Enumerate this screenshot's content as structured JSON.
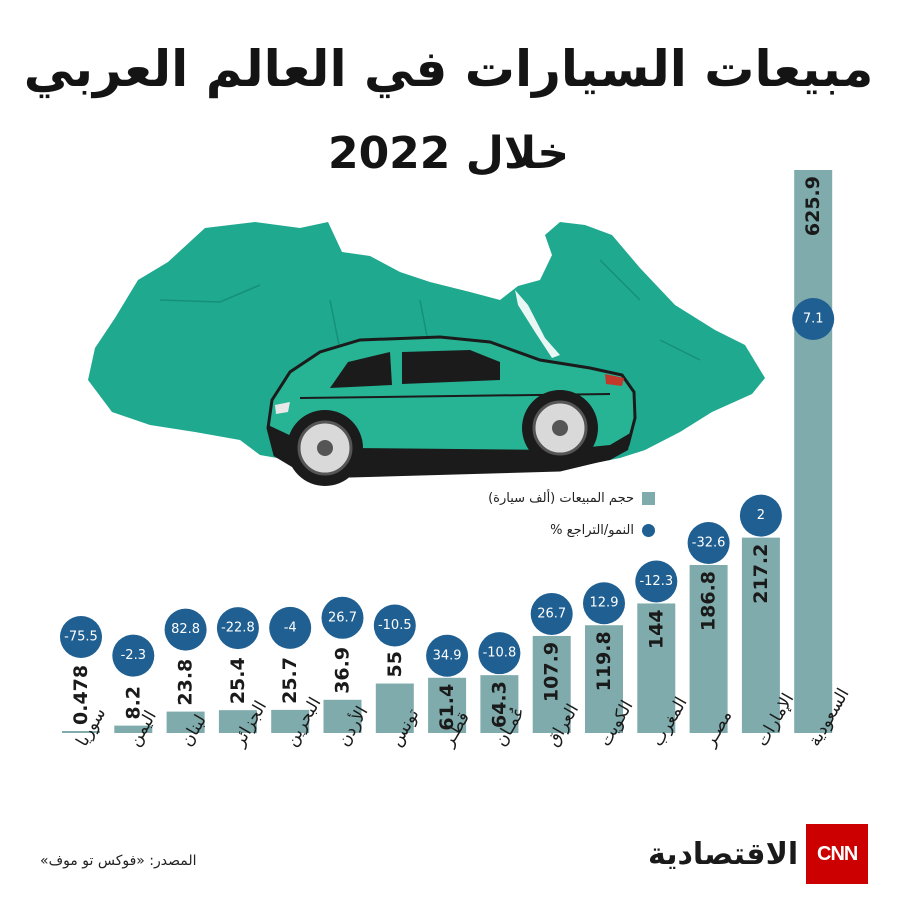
{
  "title_line1": "مبيعات السيارات في العالم العربي",
  "title_line2": "خلال 2022",
  "legend": {
    "sales": "حجم المبيعات (ألف سيارة)",
    "growth": "النمو/التراجع %"
  },
  "source": "المصدر: «فوكس تو موف»",
  "logo": {
    "wordmark": "الاقتصادية",
    "network": "CNN"
  },
  "colors": {
    "bar": "#7fabac",
    "growth_circle": "#1f5f92",
    "map": "#1fa98f",
    "car": "#27b494"
  },
  "icons": [
    "arab-world-map-icon",
    "car-icon",
    "cnn-logo-icon"
  ],
  "chart_data": {
    "type": "bar",
    "categories": [
      "سوريا",
      "اليمن",
      "لبنان",
      "الجزائر",
      "البحرين",
      "الأردن",
      "تونس",
      "قطر",
      "عُمان",
      "العراق",
      "الكويت",
      "المغرب",
      "مصر",
      "الإمارات",
      "السعودية"
    ],
    "category_labels": [
      "سوريا",
      "اليمن",
      "لبنان",
      "الجزائر",
      "البحرين",
      "الأردن",
      "تونس",
      "قطـر",
      "عُمـان",
      "العراق",
      "الكويت",
      "المغرب",
      "مصـر",
      "الإمارات",
      "السعودية"
    ],
    "series": [
      {
        "name": "حجم المبيعات (ألف سيارة)",
        "values": [
          0.478,
          8.2,
          23.8,
          25.4,
          25.7,
          36.9,
          55,
          61.4,
          64.3,
          107.9,
          119.8,
          144,
          186.8,
          217.2,
          625.9
        ]
      },
      {
        "name": "النمو/التراجع %",
        "values": [
          -75.5,
          -2.3,
          82.8,
          -22.8,
          -4,
          26.7,
          -10.5,
          34.9,
          -10.8,
          26.7,
          12.9,
          -12.3,
          -32.6,
          2,
          7.1
        ]
      }
    ],
    "value_labels": [
      "0.478",
      "8.2",
      "23.8",
      "25.4",
      "25.7",
      "36.9",
      "55",
      "61.4",
      "64.3",
      "107.9",
      "119.8",
      "144",
      "186.8",
      "217.2",
      "625.9"
    ],
    "growth_labels": [
      "-75.5",
      "-2.3",
      "82.8",
      "-22.8",
      "-4",
      "26.7",
      "-10.5",
      "34.9",
      "-10.8",
      "26.7",
      "12.9",
      "-12.3",
      "-32.6",
      "2",
      "7.1"
    ]
  }
}
